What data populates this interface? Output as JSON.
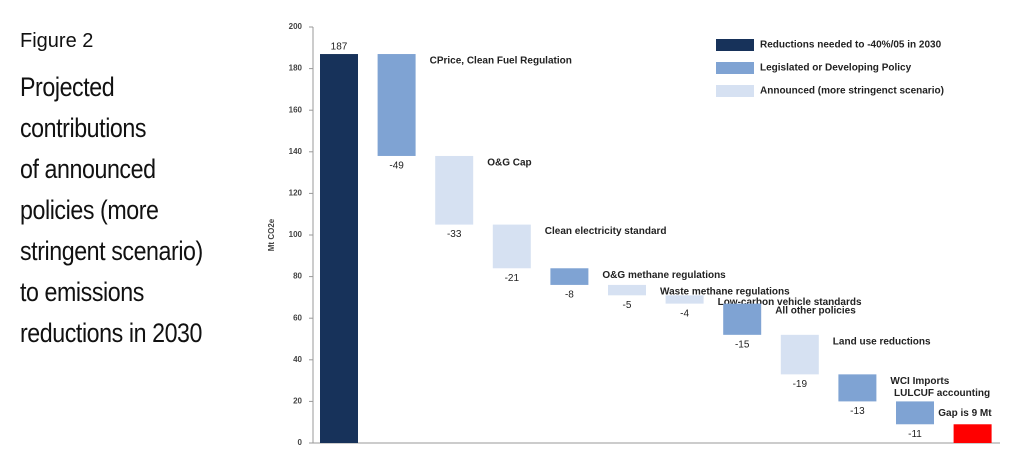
{
  "figure_label": "Figure 2",
  "title_lines": [
    "Projected",
    "contributions",
    "of announced",
    "policies (more",
    "stringent scenario)",
    "to emissions",
    "reductions in 2030"
  ],
  "chart_data": {
    "type": "waterfall",
    "categories": [
      null,
      "CPrice,  Clean Fuel Regulation",
      "O&G Cap",
      "Clean electricity standard",
      "O&G methane regulations",
      "Waste methane regulations",
      "Low-carbon vehicle standards",
      "All other policies",
      "Land use reductions",
      "WCI Imports",
      "LULCUF accounting",
      "Gap is 9 Mt"
    ],
    "values": [
      187,
      -49,
      -33,
      -21,
      -8,
      -5,
      -4,
      -15,
      -19,
      -13,
      -11,
      9
    ],
    "colors": [
      "#17325a",
      "#7fa3d3",
      "#d6e1f2",
      "#d6e1f2",
      "#7fa3d3",
      "#d6e1f2",
      "#d6e1f2",
      "#7fa3d3",
      "#d6e1f2",
      "#7fa3d3",
      "#7fa3d3",
      "#ff0000"
    ],
    "legend": [
      {
        "name": "Reductions needed to -40%/05 in 2030",
        "color": "#17325a"
      },
      {
        "name": "Legislated or Developing Policy",
        "color": "#7fa3d3"
      },
      {
        "name": "Announced (more stringenct scenario)",
        "color": "#d6e1f2"
      }
    ],
    "ylabel": "Mt CO2e",
    "ylim": [
      0,
      200
    ],
    "yticks": [
      0,
      20,
      40,
      60,
      80,
      100,
      120,
      140,
      160,
      180,
      200
    ]
  }
}
